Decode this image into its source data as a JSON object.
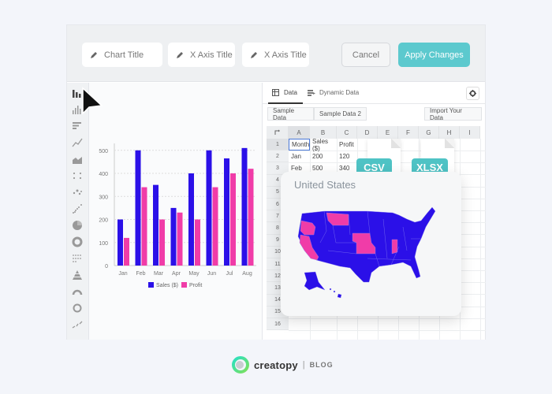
{
  "toolbar": {
    "chart_title_placeholder": "Chart Title",
    "x_axis_title_placeholder": "X Axis Title",
    "x_axis_title2_placeholder": "X Axis Title",
    "cancel_label": "Cancel",
    "apply_label": "Apply Changes"
  },
  "sidebar": {
    "items": [
      {
        "icon": "column-chart-icon",
        "active": true
      },
      {
        "icon": "histogram-icon"
      },
      {
        "icon": "bar-chart-icon"
      },
      {
        "icon": "line-chart-icon"
      },
      {
        "icon": "area-chart-icon"
      },
      {
        "icon": "scatter-plot-icon"
      },
      {
        "icon": "bubble-chart-icon"
      },
      {
        "icon": "scatter-trend-icon"
      },
      {
        "icon": "pie-chart-icon"
      },
      {
        "icon": "donut-chart-icon"
      },
      {
        "icon": "dot-matrix-icon"
      },
      {
        "icon": "pyramid-chart-icon"
      },
      {
        "icon": "gauge-chart-icon"
      },
      {
        "icon": "ring-chart-icon"
      },
      {
        "icon": "sparkline-icon"
      }
    ]
  },
  "chart_data": {
    "type": "bar",
    "categories": [
      "Jan",
      "Feb",
      "Mar",
      "Apr",
      "May",
      "Jun",
      "Jul",
      "Aug"
    ],
    "series": [
      {
        "name": "Sales ($)",
        "color": "#2b10e8",
        "values": [
          200,
          500,
          350,
          250,
          400,
          500,
          465,
          510
        ]
      },
      {
        "name": "Profit",
        "color": "#f03ca8",
        "values": [
          120,
          340,
          200,
          230,
          200,
          340,
          400,
          420
        ]
      }
    ],
    "yticks": [
      "0",
      "100",
      "200",
      "300",
      "400",
      "500"
    ],
    "ylim": [
      0,
      530
    ],
    "grid": true,
    "legend_position": "bottom"
  },
  "data_panel": {
    "tabs": [
      {
        "label": "Data",
        "active": true
      },
      {
        "label": "Dynamic Data"
      }
    ],
    "sample_data_label": "Sample Data",
    "sample_data2_label": "Sample Data 2",
    "import_label": "Import Your Data",
    "columns": [
      "A",
      "B",
      "C",
      "D",
      "E",
      "F",
      "G",
      "H",
      "I"
    ],
    "rows": [
      "1",
      "2",
      "3",
      "4",
      "5",
      "6",
      "7",
      "8",
      "9",
      "10",
      "11",
      "12",
      "13",
      "14",
      "15",
      "16"
    ],
    "cells": [
      [
        "Month",
        "Sales ($)",
        "Profit"
      ],
      [
        "Jan",
        "200",
        "120"
      ],
      [
        "Feb",
        "500",
        "340"
      ]
    ]
  },
  "file_badges": {
    "csv": "CSV",
    "xlsx": "XLSX"
  },
  "map_card": {
    "title": "United States",
    "base_color": "#2b10e8",
    "highlight_color": "#f03ca8"
  },
  "footer": {
    "brand": "creatopy",
    "separator": "|",
    "section": "BLOG"
  }
}
